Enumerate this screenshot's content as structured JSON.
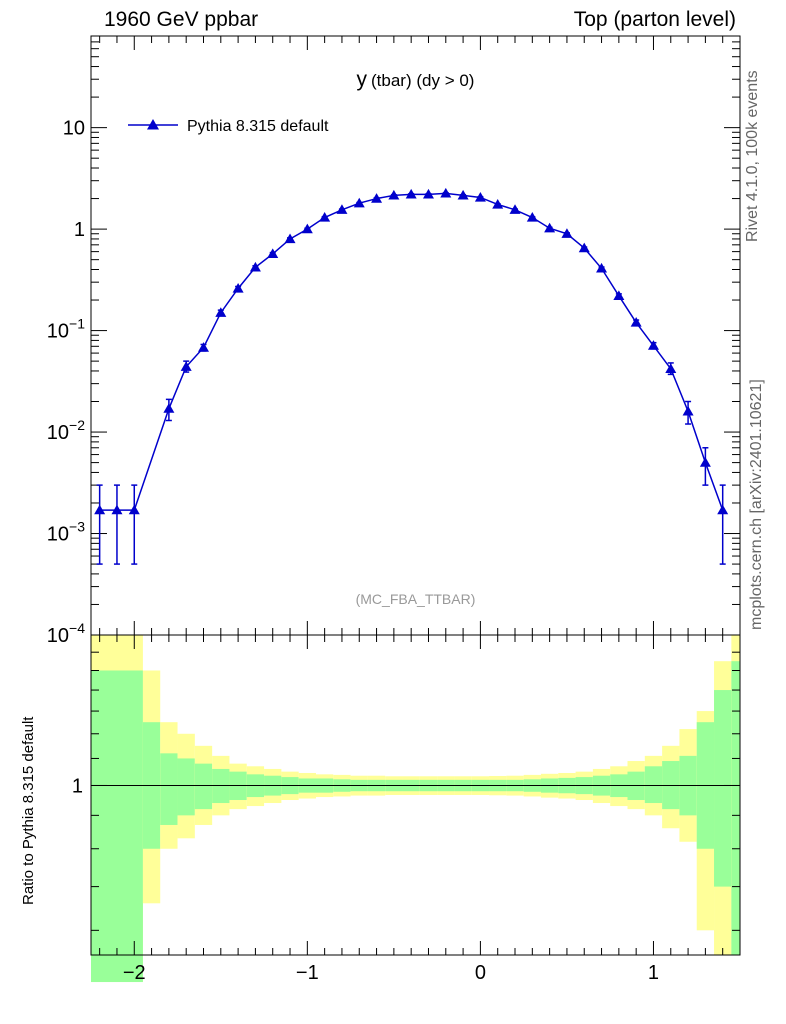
{
  "header": {
    "left": "1960 GeV ppbar",
    "right": "Top (parton level)"
  },
  "side": {
    "rivet": "Rivet 4.1.0,  100k events",
    "mcplots": "mcplots.cern.ch [arXiv:2401.10621]"
  },
  "main_plot": {
    "title": "y (tbar) (dy > 0)",
    "title_main": "y",
    "title_sub": "(tbar) (dy > 0)",
    "watermark": "(MC_FBA_TTBAR)"
  },
  "ratio_plot": {
    "ylabel": "Ratio to Pythia 8.315 default",
    "ytick_label": "1"
  },
  "colors": {
    "series": "#0000cc",
    "band_inner": "#99ff99",
    "band_outer": "#ffff99"
  },
  "chart_data": {
    "type": "line",
    "xlim": [
      -2.25,
      1.5
    ],
    "ylim": [
      0.0001,
      80
    ],
    "yscale": "log",
    "xtick_labels": [
      "−2",
      "−1",
      "0",
      "1"
    ],
    "xtick_values": [
      -2,
      -1,
      0,
      1
    ],
    "ytick_labels": [
      {
        "base": "10",
        "exp": "−4",
        "value": 0.0001
      },
      {
        "base": "10",
        "exp": "−3",
        "value": 0.001
      },
      {
        "base": "10",
        "exp": "−2",
        "value": 0.01
      },
      {
        "base": "10",
        "exp": "−1",
        "value": 0.1
      },
      {
        "base": "1",
        "exp": "",
        "value": 1
      },
      {
        "base": "10",
        "exp": "",
        "value": 10
      }
    ],
    "legend_position": "top-left",
    "series": [
      {
        "name": "Pythia 8.315 default",
        "x": [
          -2.2,
          -2.1,
          -2.0,
          -1.8,
          -1.7,
          -1.6,
          -1.5,
          -1.4,
          -1.3,
          -1.2,
          -1.1,
          -1.0,
          -0.9,
          -0.8,
          -0.7,
          -0.6,
          -0.5,
          -0.4,
          -0.3,
          -0.2,
          -0.1,
          0.0,
          0.1,
          0.2,
          0.3,
          0.4,
          0.5,
          0.6,
          0.7,
          0.8,
          0.9,
          1.0,
          1.1,
          1.2,
          1.3,
          1.4
        ],
        "y": [
          0.0017,
          0.0017,
          0.0017,
          0.017,
          0.044,
          0.068,
          0.15,
          0.26,
          0.42,
          0.57,
          0.8,
          1.0,
          1.3,
          1.55,
          1.8,
          2.0,
          2.15,
          2.2,
          2.2,
          2.25,
          2.15,
          2.05,
          1.75,
          1.55,
          1.3,
          1.02,
          0.9,
          0.65,
          0.41,
          0.22,
          0.12,
          0.071,
          0.042,
          0.016,
          0.005,
          0.0017
        ],
        "yerr_low": [
          0.0012,
          0.0012,
          0.0012,
          0.004,
          0.005,
          0.005,
          0.009,
          0.012,
          0.015,
          0.017,
          0.02,
          0.02,
          0.023,
          0.025,
          0.027,
          0.028,
          0.03,
          0.03,
          0.03,
          0.03,
          0.03,
          0.029,
          0.027,
          0.025,
          0.023,
          0.02,
          0.019,
          0.016,
          0.013,
          0.01,
          0.007,
          0.005,
          0.005,
          0.004,
          0.002,
          0.0012
        ],
        "yerr_high": [
          0.0013,
          0.0013,
          0.0013,
          0.004,
          0.006,
          0.005,
          0.009,
          0.012,
          0.015,
          0.017,
          0.02,
          0.02,
          0.023,
          0.025,
          0.027,
          0.028,
          0.03,
          0.03,
          0.03,
          0.03,
          0.03,
          0.029,
          0.027,
          0.025,
          0.023,
          0.02,
          0.019,
          0.016,
          0.013,
          0.01,
          0.007,
          0.005,
          0.006,
          0.004,
          0.002,
          0.0013
        ]
      }
    ],
    "ratio": {
      "ylim": [
        0.55,
        1.7
      ],
      "yscale": "log",
      "bins": [
        {
          "x0": -2.25,
          "x1": -1.95,
          "inner": [
            0.5,
            1.5
          ],
          "outer": [
            0.5,
            1.7
          ]
        },
        {
          "x0": -1.95,
          "x1": -1.85,
          "inner": [
            0.8,
            1.25
          ],
          "outer": [
            0.66,
            1.5
          ]
        },
        {
          "x0": -1.85,
          "x1": -1.75,
          "inner": [
            0.87,
            1.12
          ],
          "outer": [
            0.8,
            1.25
          ]
        },
        {
          "x0": -1.75,
          "x1": -1.65,
          "inner": [
            0.9,
            1.1
          ],
          "outer": [
            0.83,
            1.2
          ]
        },
        {
          "x0": -1.65,
          "x1": -1.55,
          "inner": [
            0.92,
            1.08
          ],
          "outer": [
            0.87,
            1.15
          ]
        },
        {
          "x0": -1.55,
          "x1": -1.45,
          "inner": [
            0.94,
            1.06
          ],
          "outer": [
            0.9,
            1.11
          ]
        },
        {
          "x0": -1.45,
          "x1": -1.35,
          "inner": [
            0.95,
            1.05
          ],
          "outer": [
            0.92,
            1.08
          ]
        },
        {
          "x0": -1.35,
          "x1": -1.25,
          "inner": [
            0.96,
            1.04
          ],
          "outer": [
            0.93,
            1.07
          ]
        },
        {
          "x0": -1.25,
          "x1": -1.15,
          "inner": [
            0.965,
            1.035
          ],
          "outer": [
            0.94,
            1.06
          ]
        },
        {
          "x0": -1.15,
          "x1": -1.05,
          "inner": [
            0.97,
            1.03
          ],
          "outer": [
            0.95,
            1.05
          ]
        },
        {
          "x0": -1.05,
          "x1": -0.95,
          "inner": [
            0.975,
            1.025
          ],
          "outer": [
            0.955,
            1.045
          ]
        },
        {
          "x0": -0.95,
          "x1": -0.85,
          "inner": [
            0.975,
            1.025
          ],
          "outer": [
            0.96,
            1.04
          ]
        },
        {
          "x0": -0.85,
          "x1": -0.75,
          "inner": [
            0.978,
            1.022
          ],
          "outer": [
            0.962,
            1.038
          ]
        },
        {
          "x0": -0.75,
          "x1": -0.65,
          "inner": [
            0.98,
            1.02
          ],
          "outer": [
            0.965,
            1.035
          ]
        },
        {
          "x0": -0.65,
          "x1": -0.55,
          "inner": [
            0.98,
            1.02
          ],
          "outer": [
            0.965,
            1.035
          ]
        },
        {
          "x0": -0.55,
          "x1": -0.45,
          "inner": [
            0.98,
            1.02
          ],
          "outer": [
            0.967,
            1.033
          ]
        },
        {
          "x0": -0.45,
          "x1": -0.35,
          "inner": [
            0.98,
            1.02
          ],
          "outer": [
            0.967,
            1.033
          ]
        },
        {
          "x0": -0.35,
          "x1": -0.25,
          "inner": [
            0.98,
            1.02
          ],
          "outer": [
            0.967,
            1.033
          ]
        },
        {
          "x0": -0.25,
          "x1": -0.15,
          "inner": [
            0.98,
            1.02
          ],
          "outer": [
            0.967,
            1.033
          ]
        },
        {
          "x0": -0.15,
          "x1": -0.05,
          "inner": [
            0.98,
            1.02
          ],
          "outer": [
            0.967,
            1.033
          ]
        },
        {
          "x0": -0.05,
          "x1": 0.05,
          "inner": [
            0.98,
            1.02
          ],
          "outer": [
            0.967,
            1.033
          ]
        },
        {
          "x0": 0.05,
          "x1": 0.15,
          "inner": [
            0.98,
            1.02
          ],
          "outer": [
            0.966,
            1.034
          ]
        },
        {
          "x0": 0.15,
          "x1": 0.25,
          "inner": [
            0.98,
            1.02
          ],
          "outer": [
            0.965,
            1.035
          ]
        },
        {
          "x0": 0.25,
          "x1": 0.35,
          "inner": [
            0.978,
            1.022
          ],
          "outer": [
            0.962,
            1.038
          ]
        },
        {
          "x0": 0.35,
          "x1": 0.45,
          "inner": [
            0.975,
            1.025
          ],
          "outer": [
            0.958,
            1.042
          ]
        },
        {
          "x0": 0.45,
          "x1": 0.55,
          "inner": [
            0.973,
            1.027
          ],
          "outer": [
            0.955,
            1.045
          ]
        },
        {
          "x0": 0.55,
          "x1": 0.65,
          "inner": [
            0.97,
            1.03
          ],
          "outer": [
            0.95,
            1.05
          ]
        },
        {
          "x0": 0.65,
          "x1": 0.75,
          "inner": [
            0.965,
            1.035
          ],
          "outer": [
            0.94,
            1.06
          ]
        },
        {
          "x0": 0.75,
          "x1": 0.85,
          "inner": [
            0.96,
            1.04
          ],
          "outer": [
            0.93,
            1.07
          ]
        },
        {
          "x0": 0.85,
          "x1": 0.95,
          "inner": [
            0.95,
            1.05
          ],
          "outer": [
            0.92,
            1.09
          ]
        },
        {
          "x0": 0.95,
          "x1": 1.05,
          "inner": [
            0.94,
            1.07
          ],
          "outer": [
            0.9,
            1.11
          ]
        },
        {
          "x0": 1.05,
          "x1": 1.15,
          "inner": [
            0.92,
            1.09
          ],
          "outer": [
            0.86,
            1.15
          ]
        },
        {
          "x0": 1.15,
          "x1": 1.25,
          "inner": [
            0.9,
            1.11
          ],
          "outer": [
            0.82,
            1.22
          ]
        },
        {
          "x0": 1.25,
          "x1": 1.35,
          "inner": [
            0.8,
            1.25
          ],
          "outer": [
            0.6,
            1.3
          ]
        },
        {
          "x0": 1.35,
          "x1": 1.45,
          "inner": [
            0.7,
            1.4
          ],
          "outer": [
            0.55,
            1.55
          ]
        },
        {
          "x0": 1.45,
          "x1": 1.5,
          "inner": [
            0.55,
            1.55
          ],
          "outer": [
            0.55,
            1.7
          ]
        }
      ]
    }
  }
}
